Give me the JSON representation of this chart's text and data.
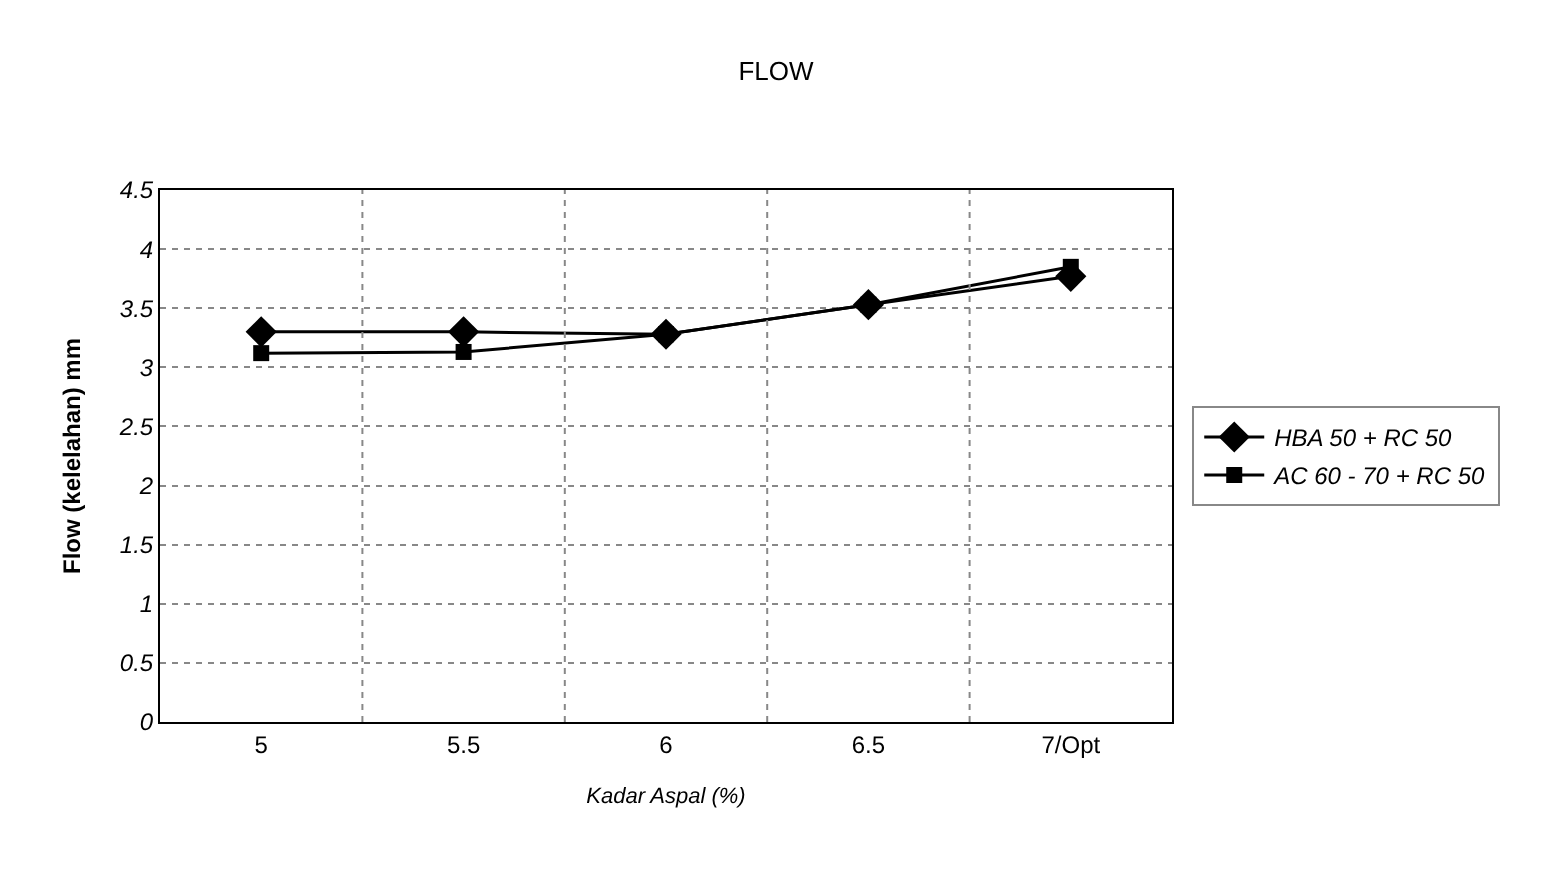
{
  "chart_data": {
    "type": "line",
    "title": "FLOW",
    "xlabel": "Kadar Aspal (%)",
    "ylabel": "Flow (kelelahan) mm",
    "categories": [
      "5",
      "5.5",
      "6",
      "6.5",
      "7/Opt"
    ],
    "series": [
      {
        "name": "HBA 50 + RC 50",
        "color": "#000000",
        "marker": "diamond",
        "values": [
          3.3,
          3.3,
          3.28,
          3.53,
          3.77
        ]
      },
      {
        "name": "AC 60 - 70 + RC 50",
        "color": "#000000",
        "marker": "square",
        "values": [
          3.12,
          3.13,
          3.28,
          3.53,
          3.85
        ]
      }
    ],
    "ylim": [
      0,
      4.5
    ],
    "yticks": [
      0,
      0.5,
      1,
      1.5,
      2,
      2.5,
      3,
      3.5,
      4,
      4.5
    ],
    "grid": true,
    "legend": "right",
    "line_style": "solid"
  }
}
